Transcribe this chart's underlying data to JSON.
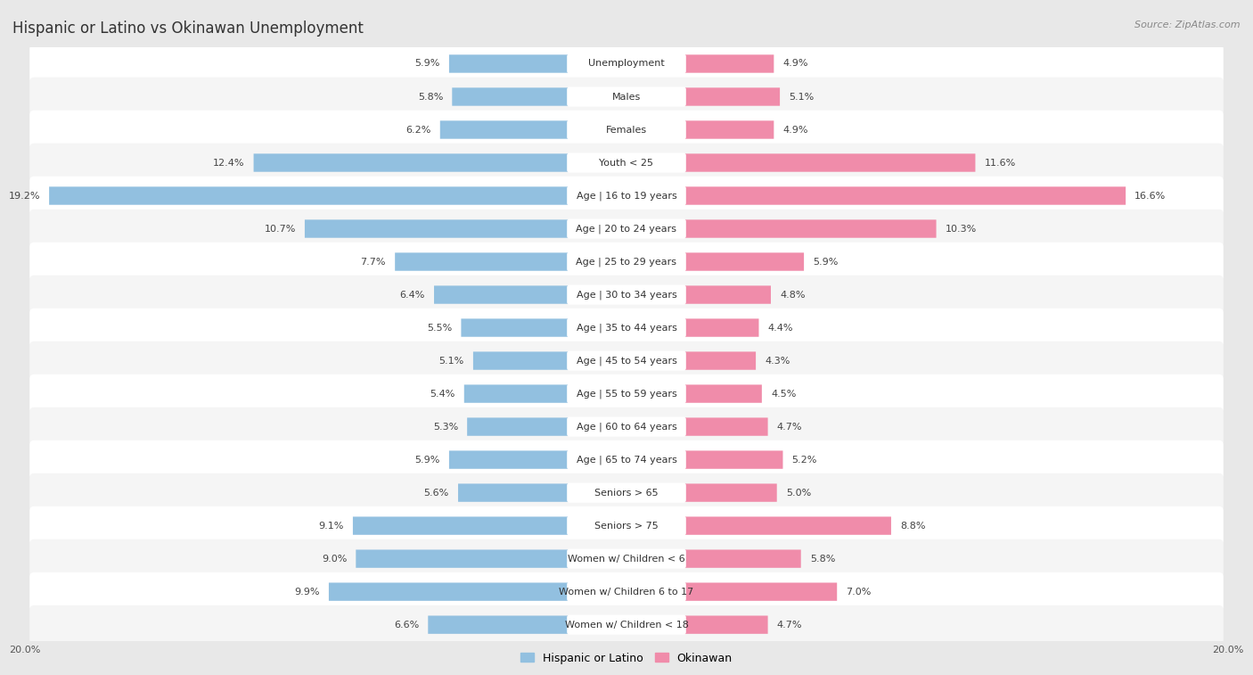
{
  "title": "Hispanic or Latino vs Okinawan Unemployment",
  "source": "Source: ZipAtlas.com",
  "categories": [
    "Unemployment",
    "Males",
    "Females",
    "Youth < 25",
    "Age | 16 to 19 years",
    "Age | 20 to 24 years",
    "Age | 25 to 29 years",
    "Age | 30 to 34 years",
    "Age | 35 to 44 years",
    "Age | 45 to 54 years",
    "Age | 55 to 59 years",
    "Age | 60 to 64 years",
    "Age | 65 to 74 years",
    "Seniors > 65",
    "Seniors > 75",
    "Women w/ Children < 6",
    "Women w/ Children 6 to 17",
    "Women w/ Children < 18"
  ],
  "hispanic_values": [
    5.9,
    5.8,
    6.2,
    12.4,
    19.2,
    10.7,
    7.7,
    6.4,
    5.5,
    5.1,
    5.4,
    5.3,
    5.9,
    5.6,
    9.1,
    9.0,
    9.9,
    6.6
  ],
  "okinawan_values": [
    4.9,
    5.1,
    4.9,
    11.6,
    16.6,
    10.3,
    5.9,
    4.8,
    4.4,
    4.3,
    4.5,
    4.7,
    5.2,
    5.0,
    8.8,
    5.8,
    7.0,
    4.7
  ],
  "hispanic_color": "#92c0e0",
  "okinawan_color": "#f08caa",
  "hispanic_label": "Hispanic or Latino",
  "okinawan_label": "Okinawan",
  "xlim": 20.0,
  "bg_color": "#e8e8e8",
  "row_color_odd": "#f5f5f5",
  "row_color_even": "#ffffff",
  "title_fontsize": 12,
  "label_fontsize": 8,
  "value_fontsize": 8,
  "legend_fontsize": 9,
  "source_fontsize": 8,
  "bar_height": 0.55
}
